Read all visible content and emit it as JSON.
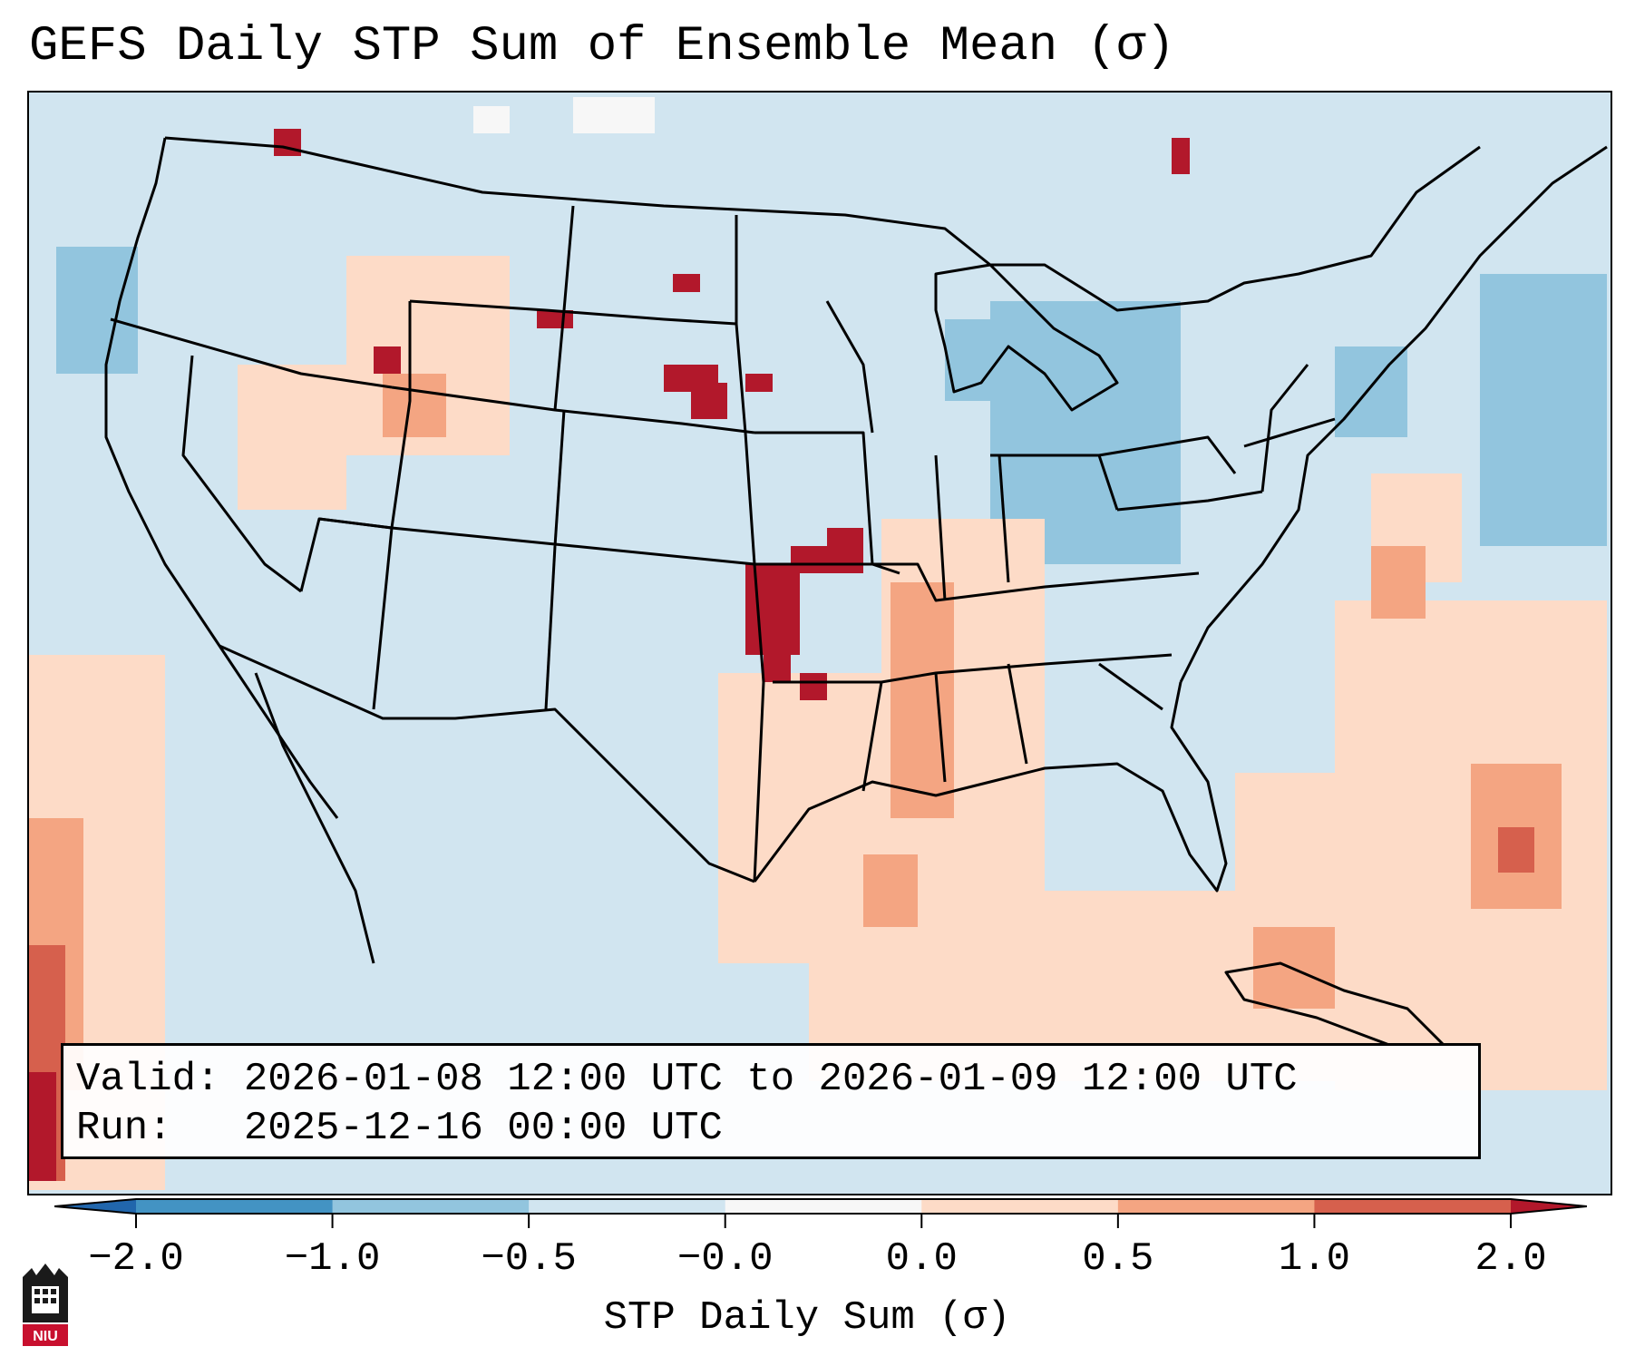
{
  "title": "GEFS Daily STP Sum of Ensemble Mean (σ)",
  "info": {
    "valid_label": "Valid:",
    "valid_text": "2026-01-08 12:00 UTC to 2026-01-09 12:00 UTC",
    "run_label": "Run:",
    "run_text": "2025-12-16 00:00 UTC"
  },
  "colorbar": {
    "label": "STP Daily Sum (σ)",
    "ticks": [
      "−2.0",
      "−1.0",
      "−0.5",
      "−0.0",
      "0.0",
      "0.5",
      "1.0",
      "2.0"
    ],
    "colors": [
      "#4393c3",
      "#92c5de",
      "#d1e5f0",
      "#f7f7f7",
      "#fddbc7",
      "#f4a582",
      "#d6604d"
    ],
    "under_color": "#2166ac",
    "over_color": "#b2182b"
  },
  "map": {
    "background_color": "#d1e5f0",
    "regions": [
      "contiguous-united-states",
      "southern-canada",
      "northern-mexico",
      "gulf-of-mexico",
      "western-atlantic"
    ]
  },
  "logo": {
    "text": "NIU"
  }
}
